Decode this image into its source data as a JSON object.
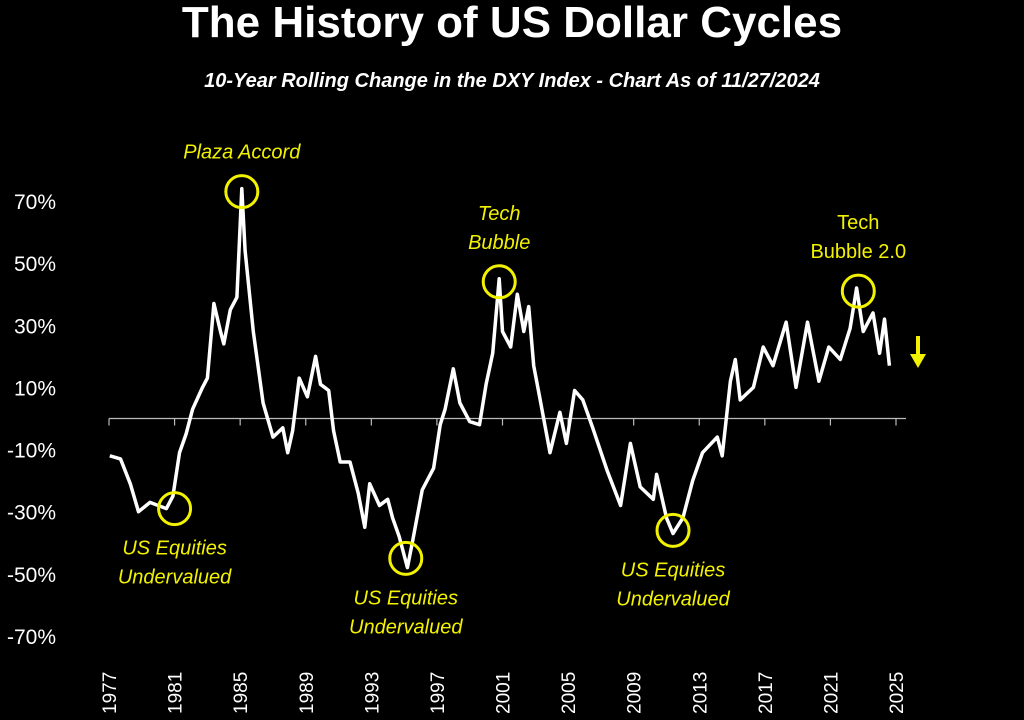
{
  "chart_data": {
    "type": "line",
    "title": "The History of US Dollar Cycles",
    "subtitle": "10-Year Rolling Change in the DXY Index - Chart As of 11/27/2024",
    "xlabel": "",
    "ylabel": "",
    "xlim": [
      1977,
      2025
    ],
    "ylim": [
      -70,
      70
    ],
    "x_ticks": [
      "1977",
      "1981",
      "1985",
      "1989",
      "1993",
      "1997",
      "2001",
      "2005",
      "2009",
      "2013",
      "2017",
      "2021",
      "2025"
    ],
    "y_ticks": [
      {
        "value": 70,
        "label": "70%"
      },
      {
        "value": 50,
        "label": "50%"
      },
      {
        "value": 30,
        "label": "30%"
      },
      {
        "value": 10,
        "label": "10%"
      },
      {
        "value": -10,
        "label": "-10%"
      },
      {
        "value": -30,
        "label": "-30%"
      },
      {
        "value": -50,
        "label": "-50%"
      },
      {
        "value": -70,
        "label": "-70%"
      }
    ],
    "grid": false,
    "line_color": "#ffffff",
    "annotation_color": "#f2f200",
    "series": [
      {
        "x": [
          1977.05,
          1977.7,
          1978.3,
          1978.8,
          1979.5,
          1980.5,
          1980.9,
          1981.3,
          1981.7,
          1982.1,
          1982.7,
          1983.0,
          1983.4,
          1983.8,
          1984.0,
          1984.4,
          1984.8,
          1985.1,
          1985.3,
          1985.8,
          1986.4,
          1987.0,
          1987.6,
          1987.9,
          1988.2,
          1988.6,
          1989.1,
          1989.6,
          1989.9,
          1990.4,
          1990.7,
          1991.1,
          1991.7,
          1992.2,
          1992.6,
          1992.9,
          1993.5,
          1994.0,
          1994.3,
          1994.7,
          1995.2,
          1995.5,
          1996.1,
          1996.8,
          1997.2,
          1997.5,
          1998.0,
          1998.4,
          1999.0,
          1999.6,
          2000.0,
          2000.4,
          2000.8,
          2001.0,
          2001.5,
          2001.9,
          2002.3,
          2002.6,
          2002.9,
          2003.3,
          2003.9,
          2004.5,
          2004.9,
          2005.4,
          2005.9,
          2006.5,
          2007.4,
          2008.2,
          2008.8,
          2009.4,
          2010.2,
          2010.4,
          2011.0,
          2011.4,
          2012.0,
          2012.6,
          2013.2,
          2014.1,
          2014.4,
          2014.9,
          2015.2,
          2015.5,
          2016.3,
          2016.9,
          2017.5,
          2018.3,
          2018.9,
          2019.6,
          2020.3,
          2020.9,
          2021.6,
          2022.2,
          2022.6,
          2023.0,
          2023.6,
          2024.0,
          2024.3,
          2024.6
        ],
        "y": [
          -12,
          -13,
          -21,
          -30,
          -27,
          -29,
          -25,
          -11,
          -5,
          3,
          10,
          13,
          37,
          28,
          24,
          35,
          39,
          74,
          54,
          28,
          5,
          -6,
          -3,
          -11,
          -4,
          13,
          7,
          20,
          11,
          9,
          -4,
          -14,
          -14,
          -24,
          -35,
          -21,
          -28,
          -26,
          -32,
          -38,
          -48,
          -40,
          -23,
          -16,
          -2,
          3,
          16,
          5,
          -1,
          -2,
          11,
          21,
          45,
          28,
          23,
          40,
          28,
          36,
          17,
          6,
          -11,
          2,
          -8,
          9,
          6,
          -3,
          -17,
          -28,
          -8,
          -22,
          -26,
          -18,
          -32,
          -37,
          -32,
          -20,
          -11,
          -6,
          -12,
          12,
          19,
          6,
          10,
          23,
          17,
          31,
          10,
          31,
          12,
          23,
          19,
          29,
          42,
          28,
          34,
          21,
          32,
          17
        ]
      }
    ],
    "annotations": [
      {
        "label": [
          "US Equities",
          "Undervalued"
        ],
        "x": 1981.0,
        "y": -29,
        "position": "below",
        "italic": true
      },
      {
        "label": [
          "Plaza Accord"
        ],
        "x": 1985.1,
        "y": 73,
        "position": "above",
        "italic": true
      },
      {
        "label": [
          "US Equities",
          "Undervalued"
        ],
        "x": 1995.1,
        "y": -45,
        "position": "below",
        "italic": true
      },
      {
        "label": [
          "Tech",
          "Bubble"
        ],
        "x": 2000.8,
        "y": 44,
        "position": "above",
        "italic": true
      },
      {
        "label": [
          "US Equities",
          "Undervalued"
        ],
        "x": 2011.4,
        "y": -36,
        "position": "below",
        "italic": true
      },
      {
        "label": [
          "Tech",
          "Bubble 2.0"
        ],
        "x": 2022.7,
        "y": 41,
        "position": "above",
        "italic": false
      }
    ],
    "trend_arrow": {
      "direction": "down",
      "icon": "arrow-down-icon"
    }
  }
}
